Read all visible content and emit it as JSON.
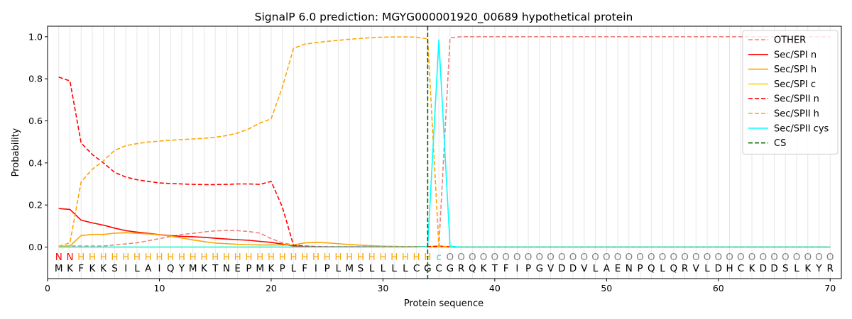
{
  "chart_data": {
    "type": "line",
    "title": "SignalP 6.0 prediction: MGYG000001920_00689 hypothetical protein",
    "xlabel": "Protein sequence",
    "ylabel": "Probability",
    "xlim": [
      0,
      71
    ],
    "ylim": [
      -0.15,
      1.05
    ],
    "x_ticks": [
      0,
      10,
      20,
      30,
      40,
      50,
      60,
      70
    ],
    "y_ticks": [
      0.0,
      0.2,
      0.4,
      0.6,
      0.8,
      1.0
    ],
    "x_tick_labels": [
      "0",
      "10",
      "20",
      "30",
      "40",
      "50",
      "60",
      "70"
    ],
    "y_tick_labels": [
      "0.0",
      "0.2",
      "0.4",
      "0.6",
      "0.8",
      "1.0"
    ],
    "grid": "vertical lines at each residue",
    "legend_position": "top-right",
    "sequence": [
      "M",
      "K",
      "F",
      "K",
      "K",
      "S",
      "I",
      "L",
      "A",
      "I",
      "Q",
      "Y",
      "M",
      "K",
      "T",
      "N",
      "E",
      "P",
      "M",
      "K",
      "P",
      "L",
      "F",
      "I",
      "P",
      "L",
      "M",
      "S",
      "L",
      "L",
      "L",
      "L",
      "C",
      "G",
      "C",
      "G",
      "R",
      "Q",
      "K",
      "T",
      "F",
      "I",
      "P",
      "G",
      "V",
      "D",
      "D",
      "V",
      "L",
      "A",
      "E",
      "N",
      "P",
      "Q",
      "L",
      "Q",
      "R",
      "V",
      "L",
      "D",
      "H",
      "C",
      "K",
      "D",
      "D",
      "S",
      "L",
      "K",
      "Y",
      "R"
    ],
    "annotations": [
      "N",
      "N",
      "H",
      "H",
      "H",
      "H",
      "H",
      "H",
      "H",
      "H",
      "H",
      "H",
      "H",
      "H",
      "H",
      "H",
      "H",
      "H",
      "H",
      "H",
      "H",
      "H",
      "H",
      "H",
      "H",
      "H",
      "H",
      "H",
      "H",
      "H",
      "H",
      "H",
      "H",
      "H",
      "c",
      "O",
      "O",
      "O",
      "O",
      "O",
      "O",
      "O",
      "O",
      "O",
      "O",
      "O",
      "O",
      "O",
      "O",
      "O",
      "O",
      "O",
      "O",
      "O",
      "O",
      "O",
      "O",
      "O",
      "O",
      "O",
      "O",
      "O",
      "O",
      "O",
      "O",
      "O",
      "O",
      "O",
      "O",
      "O"
    ],
    "annotation_colors": {
      "N": "#ff0000",
      "H": "#ffa500",
      "c": "#00e5e5",
      "O": "#808080"
    },
    "cleavage_site": 34,
    "series": [
      {
        "name": "OTHER",
        "color": "#f08080",
        "dash": "dashed",
        "values": [
          0.005,
          0.005,
          0.005,
          0.005,
          0.005,
          0.01,
          0.015,
          0.02,
          0.03,
          0.04,
          0.05,
          0.06,
          0.065,
          0.072,
          0.077,
          0.079,
          0.078,
          0.074,
          0.066,
          0.04,
          0.02,
          0.01,
          0.005,
          0.003,
          0.002,
          0.001,
          0.001,
          0.001,
          0.001,
          0.001,
          0.001,
          0.001,
          0.001,
          0.001,
          0.001,
          0.995,
          1.0,
          1.0,
          1.0,
          1.0,
          1.0,
          1.0,
          1.0,
          1.0,
          1.0,
          1.0,
          1.0,
          1.0,
          1.0,
          1.0,
          1.0,
          1.0,
          1.0,
          1.0,
          1.0,
          1.0,
          1.0,
          1.0,
          1.0,
          1.0,
          1.0,
          1.0,
          1.0,
          1.0,
          1.0,
          1.0,
          1.0,
          1.0,
          1.0,
          1.0
        ]
      },
      {
        "name": "Sec/SPI n",
        "color": "#ff0000",
        "dash": "solid",
        "values": [
          0.183,
          0.179,
          0.128,
          0.115,
          0.104,
          0.09,
          0.078,
          0.071,
          0.065,
          0.059,
          0.054,
          0.051,
          0.049,
          0.046,
          0.042,
          0.038,
          0.035,
          0.032,
          0.027,
          0.022,
          0.014,
          0.005,
          0.002,
          0.001,
          0.001,
          0.001,
          0.001,
          0.001,
          0.001,
          0.001,
          0.001,
          0.001,
          0.001,
          0.001,
          0.003,
          0.001,
          0.0,
          0.0,
          0.0,
          0.0,
          0.0,
          0.0,
          0.0,
          0.0,
          0.0,
          0.0,
          0.0,
          0.0,
          0.0,
          0.0,
          0.0,
          0.0,
          0.0,
          0.0,
          0.0,
          0.0,
          0.0,
          0.0,
          0.0,
          0.0,
          0.0,
          0.0,
          0.0,
          0.0,
          0.0,
          0.0,
          0.0,
          0.0,
          0.0,
          0.0
        ]
      },
      {
        "name": "Sec/SPI h",
        "color": "#ffa500",
        "dash": "solid",
        "values": [
          0.003,
          0.005,
          0.055,
          0.06,
          0.06,
          0.066,
          0.068,
          0.066,
          0.062,
          0.058,
          0.052,
          0.043,
          0.034,
          0.026,
          0.019,
          0.016,
          0.013,
          0.011,
          0.01,
          0.01,
          0.01,
          0.01,
          0.02,
          0.022,
          0.02,
          0.016,
          0.012,
          0.009,
          0.006,
          0.004,
          0.003,
          0.002,
          0.002,
          0.002,
          0.001,
          0.0,
          0.0,
          0.0,
          0.0,
          0.0,
          0.0,
          0.0,
          0.0,
          0.0,
          0.0,
          0.0,
          0.0,
          0.0,
          0.0,
          0.0,
          0.0,
          0.0,
          0.0,
          0.0,
          0.0,
          0.0,
          0.0,
          0.0,
          0.0,
          0.0,
          0.0,
          0.0,
          0.0,
          0.0,
          0.0,
          0.0,
          0.0,
          0.0,
          0.0,
          0.0
        ]
      },
      {
        "name": "Sec/SPI c",
        "color": "#ffd700",
        "dash": "solid",
        "values": [
          0.0,
          0.0,
          0.0,
          0.0,
          0.0,
          0.0,
          0.0,
          0.0,
          0.0,
          0.0,
          0.0,
          0.0,
          0.0,
          0.0,
          0.0,
          0.0,
          0.0,
          0.0,
          0.0,
          0.0,
          0.0,
          0.0,
          0.0,
          0.0,
          0.0,
          0.0,
          0.0,
          0.0,
          0.0,
          0.0,
          0.0,
          0.0,
          0.0,
          0.003,
          0.005,
          0.002,
          0.0,
          0.0,
          0.0,
          0.0,
          0.0,
          0.0,
          0.0,
          0.0,
          0.0,
          0.0,
          0.0,
          0.0,
          0.0,
          0.0,
          0.0,
          0.0,
          0.0,
          0.0,
          0.0,
          0.0,
          0.0,
          0.0,
          0.0,
          0.0,
          0.0,
          0.0,
          0.0,
          0.0,
          0.0,
          0.0,
          0.0,
          0.0,
          0.0,
          0.0
        ]
      },
      {
        "name": "Sec/SPII n",
        "color": "#ff0000",
        "dash": "dashed",
        "values": [
          0.808,
          0.79,
          0.495,
          0.44,
          0.4,
          0.355,
          0.333,
          0.32,
          0.312,
          0.305,
          0.302,
          0.3,
          0.298,
          0.297,
          0.297,
          0.298,
          0.3,
          0.3,
          0.298,
          0.312,
          0.19,
          0.008,
          0.004,
          0.002,
          0.001,
          0.001,
          0.001,
          0.001,
          0.001,
          0.001,
          0.001,
          0.001,
          0.001,
          0.002,
          0.004,
          0.001,
          0.0,
          0.0,
          0.0,
          0.0,
          0.0,
          0.0,
          0.0,
          0.0,
          0.0,
          0.0,
          0.0,
          0.0,
          0.0,
          0.0,
          0.0,
          0.0,
          0.0,
          0.0,
          0.0,
          0.0,
          0.0,
          0.0,
          0.0,
          0.0,
          0.0,
          0.0,
          0.0,
          0.0,
          0.0,
          0.0,
          0.0,
          0.0,
          0.0,
          0.0
        ]
      },
      {
        "name": "Sec/SPII h",
        "color": "#ffa500",
        "dash": "dashed",
        "values": [
          0.003,
          0.02,
          0.31,
          0.37,
          0.41,
          0.46,
          0.482,
          0.492,
          0.499,
          0.504,
          0.508,
          0.511,
          0.514,
          0.517,
          0.522,
          0.53,
          0.542,
          0.562,
          0.59,
          0.61,
          0.76,
          0.945,
          0.965,
          0.972,
          0.978,
          0.983,
          0.988,
          0.992,
          0.996,
          0.998,
          0.999,
          0.999,
          0.998,
          0.99,
          0.003,
          0.001,
          0.0,
          0.0,
          0.0,
          0.0,
          0.0,
          0.0,
          0.0,
          0.0,
          0.0,
          0.0,
          0.0,
          0.0,
          0.0,
          0.0,
          0.0,
          0.0,
          0.0,
          0.0,
          0.0,
          0.0,
          0.0,
          0.0,
          0.0,
          0.0,
          0.0,
          0.0,
          0.0,
          0.0,
          0.0,
          0.0,
          0.0,
          0.0,
          0.0,
          0.0
        ]
      },
      {
        "name": "Sec/SPII cys",
        "color": "#00ffff",
        "dash": "solid",
        "values": [
          0.0,
          0.0,
          0.0,
          0.0,
          0.0,
          0.0,
          0.0,
          0.0,
          0.0,
          0.0,
          0.0,
          0.0,
          0.0,
          0.0,
          0.0,
          0.0,
          0.0,
          0.0,
          0.0,
          0.0,
          0.0,
          0.0,
          0.0,
          0.0,
          0.0,
          0.0,
          0.0,
          0.0,
          0.0,
          0.0,
          0.0,
          0.0,
          0.0,
          0.002,
          0.985,
          0.004,
          0.0,
          0.0,
          0.0,
          0.0,
          0.0,
          0.0,
          0.0,
          0.0,
          0.0,
          0.0,
          0.0,
          0.0,
          0.0,
          0.0,
          0.0,
          0.0,
          0.0,
          0.0,
          0.0,
          0.0,
          0.0,
          0.0,
          0.0,
          0.0,
          0.0,
          0.0,
          0.0,
          0.0,
          0.0,
          0.0,
          0.0,
          0.0,
          0.0,
          0.0
        ]
      }
    ],
    "legend": [
      {
        "name": "OTHER",
        "color": "#f08080",
        "dash": "dashed"
      },
      {
        "name": "Sec/SPI n",
        "color": "#ff0000",
        "dash": "solid"
      },
      {
        "name": "Sec/SPI h",
        "color": "#ffa500",
        "dash": "solid"
      },
      {
        "name": "Sec/SPI c",
        "color": "#ffd700",
        "dash": "solid"
      },
      {
        "name": "Sec/SPII n",
        "color": "#ff0000",
        "dash": "dashed"
      },
      {
        "name": "Sec/SPII h",
        "color": "#ffa500",
        "dash": "dashed"
      },
      {
        "name": "Sec/SPII cys",
        "color": "#00ffff",
        "dash": "solid"
      },
      {
        "name": "CS",
        "color": "#006400",
        "dash": "dashed"
      }
    ]
  }
}
